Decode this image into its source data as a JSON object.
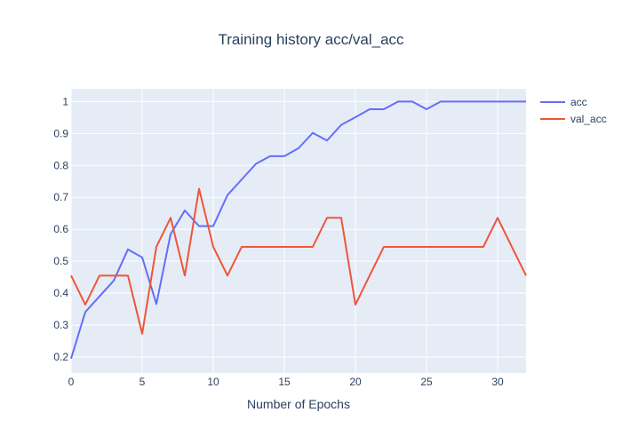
{
  "chart_data": {
    "type": "line",
    "title": "Training history acc/val_acc",
    "xlabel": "Number of Epochs",
    "ylabel": "",
    "xlim": [
      0,
      32
    ],
    "ylim": [
      0.15,
      1.04
    ],
    "x_ticks": [
      0,
      5,
      10,
      15,
      20,
      25,
      30
    ],
    "y_ticks": [
      0.2,
      0.3,
      0.4,
      0.5,
      0.6,
      0.7,
      0.8,
      0.9,
      1
    ],
    "grid": true,
    "legend_position": "top-right",
    "plot_background": "#e5ecf6",
    "x": [
      0,
      1,
      2,
      3,
      4,
      5,
      6,
      7,
      8,
      9,
      10,
      11,
      12,
      13,
      14,
      15,
      16,
      17,
      18,
      19,
      20,
      21,
      22,
      23,
      24,
      25,
      26,
      27,
      28,
      29,
      30,
      31,
      32
    ],
    "series": [
      {
        "name": "acc",
        "color": "#636efa",
        "values": [
          0.195,
          0.341,
          0.39,
          0.439,
          0.537,
          0.512,
          0.366,
          0.585,
          0.659,
          0.61,
          0.61,
          0.707,
          0.756,
          0.805,
          0.829,
          0.829,
          0.854,
          0.902,
          0.878,
          0.927,
          0.951,
          0.976,
          0.976,
          1.0,
          1.0,
          0.976,
          1.0,
          1.0,
          1.0,
          1.0,
          1.0,
          1.0,
          1.0
        ]
      },
      {
        "name": "val_acc",
        "color": "#ef553b",
        "values": [
          0.455,
          0.364,
          0.455,
          0.455,
          0.455,
          0.273,
          0.545,
          0.636,
          0.455,
          0.727,
          0.545,
          0.455,
          0.545,
          0.545,
          0.545,
          0.545,
          0.545,
          0.545,
          0.636,
          0.636,
          0.364,
          0.455,
          0.545,
          0.545,
          0.545,
          0.545,
          0.545,
          0.545,
          0.545,
          0.545,
          0.636,
          0.545,
          0.455
        ]
      }
    ]
  }
}
